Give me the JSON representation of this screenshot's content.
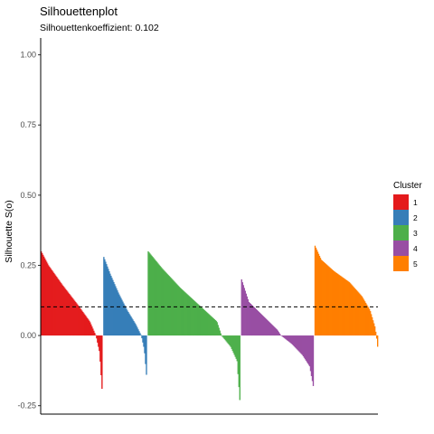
{
  "chart_data": {
    "type": "bar",
    "title": "Silhouettenplot",
    "subtitle": "Silhouettenkoeffizient: 0.102",
    "ylabel": "Silhouette S(o)",
    "xlabel": "",
    "ylim": [
      -0.28,
      1.06
    ],
    "yticks": [
      -0.25,
      0.0,
      0.25,
      0.5,
      0.75,
      1.0
    ],
    "ytick_labels": [
      "-0.25",
      "0.00",
      "0.25",
      "0.50",
      "0.75",
      "1.00"
    ],
    "reference_line": {
      "value": 0.102,
      "style": "dashed"
    },
    "legend": {
      "title": "Cluster",
      "position": "right",
      "items": [
        {
          "label": "1",
          "color": "#E41A1C"
        },
        {
          "label": "2",
          "color": "#377EB8"
        },
        {
          "label": "3",
          "color": "#4DAF4A"
        },
        {
          "label": "4",
          "color": "#984EA3"
        },
        {
          "label": "5",
          "color": "#FF7F00"
        }
      ]
    },
    "series": [
      {
        "name": "1",
        "color": "#E41A1C",
        "n": 68,
        "profile": [
          [
            0,
            0.3
          ],
          [
            0.12,
            0.25
          ],
          [
            0.35,
            0.18
          ],
          [
            0.6,
            0.11
          ],
          [
            0.8,
            0.05
          ],
          [
            0.9,
            0.0
          ],
          [
            0.96,
            -0.06
          ],
          [
            1.0,
            -0.19
          ]
        ]
      },
      {
        "name": "2",
        "color": "#377EB8",
        "n": 48,
        "profile": [
          [
            0,
            0.28
          ],
          [
            0.15,
            0.22
          ],
          [
            0.35,
            0.15
          ],
          [
            0.55,
            0.09
          ],
          [
            0.75,
            0.04
          ],
          [
            0.88,
            0.0
          ],
          [
            0.95,
            -0.05
          ],
          [
            1.0,
            -0.14
          ]
        ]
      },
      {
        "name": "3",
        "color": "#4DAF4A",
        "n": 102,
        "profile": [
          [
            0,
            0.3
          ],
          [
            0.15,
            0.24
          ],
          [
            0.35,
            0.17
          ],
          [
            0.55,
            0.11
          ],
          [
            0.75,
            0.05
          ],
          [
            0.8,
            0.0
          ],
          [
            0.9,
            -0.04
          ],
          [
            0.97,
            -0.09
          ],
          [
            1.0,
            -0.23
          ]
        ]
      },
      {
        "name": "4",
        "color": "#984EA3",
        "n": 80,
        "profile": [
          [
            0,
            0.2
          ],
          [
            0.1,
            0.12
          ],
          [
            0.3,
            0.07
          ],
          [
            0.5,
            0.02
          ],
          [
            0.55,
            0.0
          ],
          [
            0.7,
            -0.03
          ],
          [
            0.85,
            -0.07
          ],
          [
            0.95,
            -0.11
          ],
          [
            1.0,
            -0.18
          ]
        ]
      },
      {
        "name": "5",
        "color": "#FF7F00",
        "n": 70,
        "profile": [
          [
            0,
            0.32
          ],
          [
            0.1,
            0.27
          ],
          [
            0.3,
            0.23
          ],
          [
            0.55,
            0.19
          ],
          [
            0.75,
            0.14
          ],
          [
            0.88,
            0.09
          ],
          [
            0.96,
            0.03
          ],
          [
            0.98,
            0.0
          ],
          [
            1.0,
            -0.04
          ]
        ]
      }
    ]
  }
}
